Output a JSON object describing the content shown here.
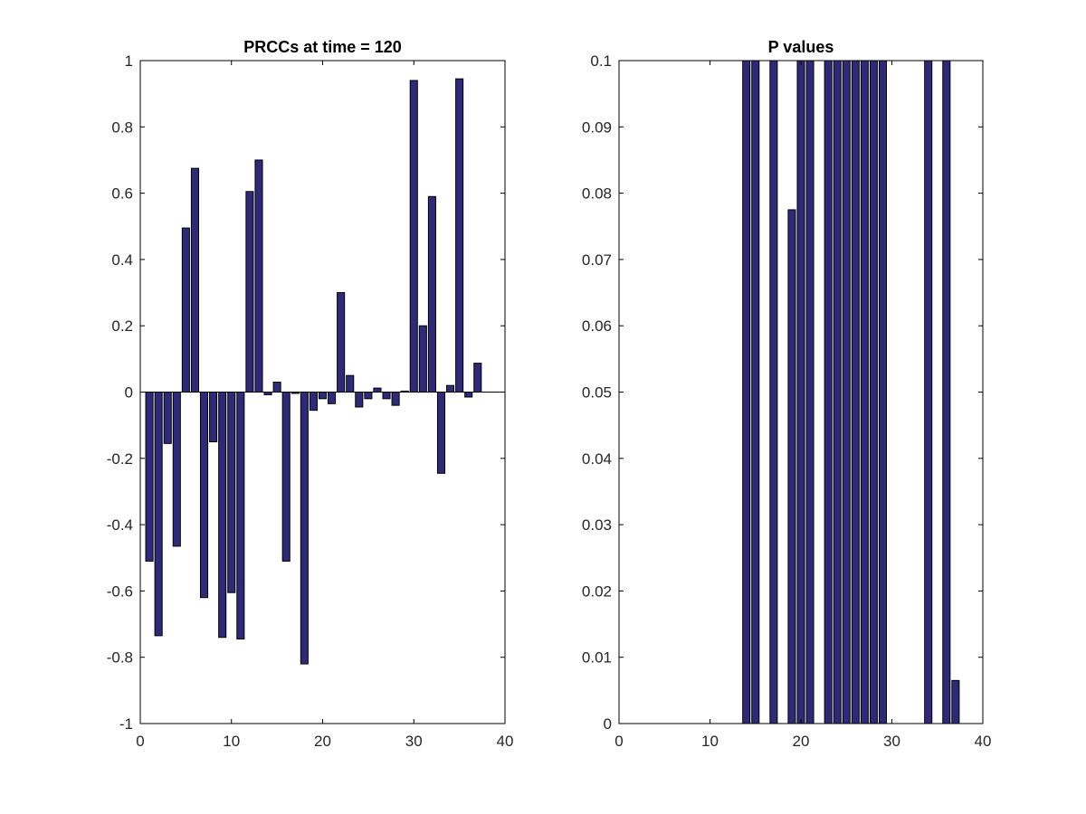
{
  "chart_data": [
    {
      "type": "bar",
      "title": "PRCCs at time = 120",
      "xlabel": "",
      "ylabel": "",
      "xlim": [
        0,
        40
      ],
      "ylim": [
        -1,
        1
      ],
      "xticks": [
        "0",
        "10",
        "20",
        "30",
        "40"
      ],
      "yticks": [
        "-1",
        "-0.8",
        "-0.6",
        "-0.4",
        "-0.2",
        "0",
        "0.2",
        "0.4",
        "0.6",
        "0.8",
        "1"
      ],
      "bar_color": "#2e2a79",
      "grid": false,
      "legend": "none",
      "x": [
        1,
        2,
        3,
        4,
        5,
        6,
        7,
        8,
        9,
        10,
        11,
        12,
        13,
        14,
        15,
        16,
        17,
        18,
        19,
        20,
        21,
        22,
        23,
        24,
        25,
        26,
        27,
        28,
        29,
        30,
        31,
        32,
        33,
        34,
        35,
        36,
        37
      ],
      "values": [
        -0.51,
        -0.735,
        -0.155,
        -0.465,
        0.495,
        0.675,
        -0.62,
        -0.15,
        -0.74,
        -0.605,
        -0.745,
        0.605,
        0.7,
        -0.008,
        0.03,
        -0.51,
        -0.004,
        -0.82,
        -0.055,
        -0.02,
        -0.035,
        0.3,
        0.05,
        -0.045,
        -0.02,
        0.012,
        -0.02,
        -0.04,
        0.003,
        0.94,
        0.2,
        0.59,
        -0.245,
        0.02,
        0.945,
        -0.015,
        0.087
      ]
    },
    {
      "type": "bar",
      "title": "P values",
      "xlabel": "",
      "ylabel": "",
      "xlim": [
        0,
        40
      ],
      "ylim": [
        0,
        0.1
      ],
      "xticks": [
        "0",
        "10",
        "20",
        "30",
        "40"
      ],
      "yticks": [
        "0",
        "0.01",
        "0.02",
        "0.03",
        "0.04",
        "0.05",
        "0.06",
        "0.07",
        "0.08",
        "0.09",
        "0.1"
      ],
      "bar_color": "#2e2a79",
      "grid": false,
      "legend": "none",
      "x": [
        1,
        2,
        3,
        4,
        5,
        6,
        7,
        8,
        9,
        10,
        11,
        12,
        13,
        14,
        15,
        16,
        17,
        18,
        19,
        20,
        21,
        22,
        23,
        24,
        25,
        26,
        27,
        28,
        29,
        30,
        31,
        32,
        33,
        34,
        35,
        36,
        37
      ],
      "values": [
        0,
        0,
        0,
        0,
        0,
        0,
        0,
        0,
        0,
        0,
        0,
        0,
        0,
        0.1,
        0.1,
        0,
        0.1,
        0,
        0.0775,
        0.1,
        0.1,
        0,
        0.1,
        0.1,
        0.1,
        0.1,
        0.1,
        0.1,
        0.1,
        0,
        0,
        0,
        0,
        0.1,
        0,
        0.1,
        0.0065
      ]
    }
  ]
}
